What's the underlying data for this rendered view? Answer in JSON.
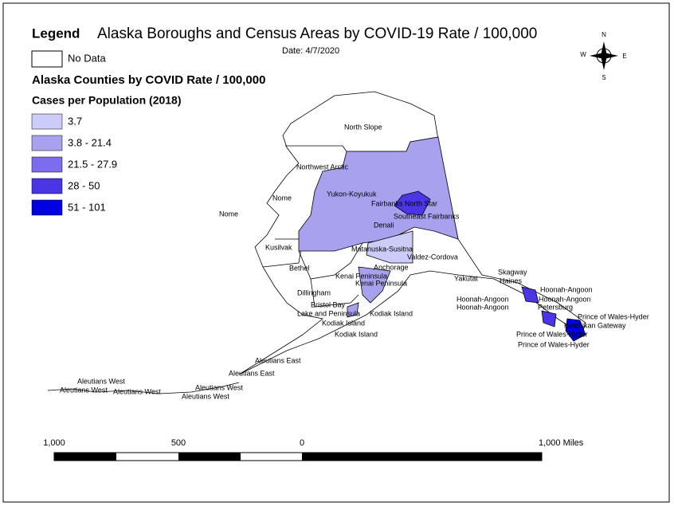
{
  "header": {
    "legend_word": "Legend",
    "title": "Alaska Boroughs and Census Areas by COVID-19 Rate / 100,000",
    "date": "Date: 4/7/2020"
  },
  "legend": {
    "no_data": "No Data",
    "layer_title": "Alaska Counties by COVID Rate / 100,000",
    "field_title": "Cases per Population (2018)",
    "classes": [
      {
        "label": "3.7",
        "color": "#ccccf8"
      },
      {
        "label": "3.8 - 21.4",
        "color": "#a8a2ee"
      },
      {
        "label": "21.5 - 27.9",
        "color": "#7c6cee"
      },
      {
        "label": "28 - 50",
        "color": "#4a36e4"
      },
      {
        "label": "51 - 101",
        "color": "#0000e0"
      }
    ]
  },
  "compass": {
    "n": "N",
    "w": "W",
    "e": "E",
    "s": "S"
  },
  "map": {
    "labels": [
      "North Slope",
      "Northwest Arctic",
      "Nome",
      "Nome",
      "Yukon-Koyukuk",
      "Fairbanks North Star",
      "Southeast Fairbanks",
      "Denali",
      "Kusilvak",
      "Matanuska-Susitna",
      "Valdez-Cordova",
      "Anchorage",
      "Kenai Peninsula",
      "Kenai Peninsula",
      "Bethel",
      "Yakutat",
      "Skagway",
      "Haines",
      "Hoonah-Angoon",
      "Hoonah-Angoon",
      "Hoonah-Angoon",
      "Hoonah-Angoon",
      "Petersburg",
      "Dillingham",
      "Bristol Bay",
      "Lake and Peninsula",
      "Kodiak Island",
      "Kodiak Island",
      "Kodiak Island",
      "Prince of Wales-Hyder",
      "Ketchikan Gateway",
      "Prince of Wales-Hyder",
      "Prince of Wales-Hyder",
      "Aleutians East",
      "Aleutians East",
      "Aleutians West",
      "Aleutians West",
      "Aleutians West",
      "Aleutians West",
      "Aleutians West"
    ]
  },
  "scale_bar": {
    "labels": [
      "1,000",
      "500",
      "0",
      "1,000 Miles"
    ]
  }
}
